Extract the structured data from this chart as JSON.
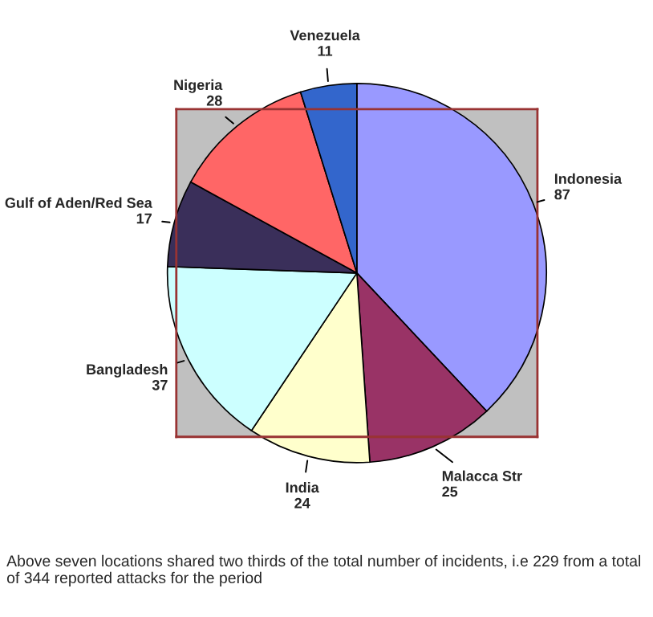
{
  "chart_data": {
    "type": "pie",
    "categories": [
      "Indonesia",
      "Malacca Str",
      "India",
      "Bangladesh",
      "Gulf of Aden/Red Sea",
      "Nigeria",
      "Venezuela"
    ],
    "values": [
      87,
      25,
      24,
      37,
      17,
      28,
      11
    ],
    "colors": [
      "#9999ff",
      "#993366",
      "#ffffcc",
      "#ccffff",
      "#3a2f5a",
      "#ff6666",
      "#3366cc"
    ],
    "data_labels": true,
    "annotations": [
      "Above seven locations shared two thirds of the total number of incidents, i.e 229 from a total of 344 reported attacks for the period"
    ]
  }
}
